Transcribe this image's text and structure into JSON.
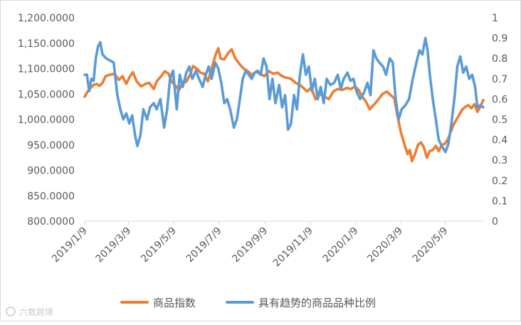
{
  "watermark": "六数跨境",
  "chart_data": {
    "type": "line",
    "title": "",
    "y_left": {
      "min": 800,
      "max": 1200,
      "ticks": [
        "800.0000",
        "850.0000",
        "900.0000",
        "950.0000",
        "1,000.0000",
        "1,050.0000",
        "1,100.0000",
        "1,150.0000",
        "1,200.0000"
      ]
    },
    "y_right": {
      "min": 0,
      "max": 1,
      "ticks": [
        "0",
        "0.1",
        "0.2",
        "0.3",
        "0.4",
        "0.5",
        "0.6",
        "0.7",
        "0.8",
        "0.9",
        "1"
      ]
    },
    "x_range": [
      "2019-01-09",
      "2020-06-29"
    ],
    "x_ticks": [
      "2019/1/9",
      "2019/3/9",
      "2019/5/9",
      "2019/7/9",
      "2019/9/9",
      "2019/11/9",
      "2020/1/9",
      "2020/3/9",
      "2020/5/9"
    ],
    "grid": false,
    "legend_position": "bottom",
    "series": [
      {
        "name": "商品指数",
        "axis": "left",
        "color": "#ED7D31",
        "points": [
          [
            "2019-01-09",
            1045
          ],
          [
            "2019-01-13",
            1055
          ],
          [
            "2019-01-17",
            1062
          ],
          [
            "2019-01-21",
            1068
          ],
          [
            "2019-01-25",
            1070
          ],
          [
            "2019-01-29",
            1066
          ],
          [
            "2019-02-02",
            1072
          ],
          [
            "2019-02-06",
            1085
          ],
          [
            "2019-02-12",
            1088
          ],
          [
            "2019-02-18",
            1090
          ],
          [
            "2019-02-24",
            1078
          ],
          [
            "2019-03-01",
            1085
          ],
          [
            "2019-03-06",
            1070
          ],
          [
            "2019-03-11",
            1085
          ],
          [
            "2019-03-15",
            1093
          ],
          [
            "2019-03-20",
            1075
          ],
          [
            "2019-03-26",
            1065
          ],
          [
            "2019-04-01",
            1070
          ],
          [
            "2019-04-06",
            1072
          ],
          [
            "2019-04-12",
            1060
          ],
          [
            "2019-04-16",
            1075
          ],
          [
            "2019-04-22",
            1085
          ],
          [
            "2019-04-27",
            1095
          ],
          [
            "2019-05-02",
            1090
          ],
          [
            "2019-05-06",
            1075
          ],
          [
            "2019-05-12",
            1065
          ],
          [
            "2019-05-16",
            1058
          ],
          [
            "2019-05-21",
            1070
          ],
          [
            "2019-05-26",
            1075
          ],
          [
            "2019-05-31",
            1088
          ],
          [
            "2019-06-04",
            1105
          ],
          [
            "2019-06-09",
            1100
          ],
          [
            "2019-06-14",
            1092
          ],
          [
            "2019-06-19",
            1090
          ],
          [
            "2019-06-24",
            1075
          ],
          [
            "2019-06-28",
            1095
          ],
          [
            "2019-07-01",
            1110
          ],
          [
            "2019-07-05",
            1130
          ],
          [
            "2019-07-08",
            1140
          ],
          [
            "2019-07-11",
            1120
          ],
          [
            "2019-07-16",
            1118
          ],
          [
            "2019-07-21",
            1130
          ],
          [
            "2019-07-26",
            1138
          ],
          [
            "2019-07-31",
            1120
          ],
          [
            "2019-08-05",
            1110
          ],
          [
            "2019-08-11",
            1100
          ],
          [
            "2019-08-16",
            1096
          ],
          [
            "2019-08-22",
            1088
          ],
          [
            "2019-08-28",
            1094
          ],
          [
            "2019-09-02",
            1090
          ],
          [
            "2019-09-08",
            1085
          ],
          [
            "2019-09-14",
            1095
          ],
          [
            "2019-09-20",
            1090
          ],
          [
            "2019-09-26",
            1092
          ],
          [
            "2019-10-02",
            1085
          ],
          [
            "2019-10-08",
            1082
          ],
          [
            "2019-10-14",
            1080
          ],
          [
            "2019-10-20",
            1072
          ],
          [
            "2019-10-26",
            1068
          ],
          [
            "2019-11-01",
            1060
          ],
          [
            "2019-11-05",
            1055
          ],
          [
            "2019-11-10",
            1063
          ],
          [
            "2019-11-16",
            1040
          ],
          [
            "2019-11-22",
            1050
          ],
          [
            "2019-11-28",
            1045
          ],
          [
            "2019-12-04",
            1040
          ],
          [
            "2019-12-10",
            1055
          ],
          [
            "2019-12-16",
            1060
          ],
          [
            "2019-12-22",
            1058
          ],
          [
            "2019-12-28",
            1062
          ],
          [
            "2020-01-03",
            1060
          ],
          [
            "2020-01-08",
            1065
          ],
          [
            "2020-01-13",
            1058
          ],
          [
            "2020-01-18",
            1045
          ],
          [
            "2020-01-23",
            1035
          ],
          [
            "2020-01-28",
            1020
          ],
          [
            "2020-02-02",
            1028
          ],
          [
            "2020-02-08",
            1038
          ],
          [
            "2020-02-14",
            1050
          ],
          [
            "2020-02-20",
            1055
          ],
          [
            "2020-02-25",
            1048
          ],
          [
            "2020-03-01",
            1042
          ],
          [
            "2020-03-05",
            1010
          ],
          [
            "2020-03-10",
            975
          ],
          [
            "2020-03-15",
            950
          ],
          [
            "2020-03-19",
            932
          ],
          [
            "2020-03-22",
            940
          ],
          [
            "2020-03-25",
            918
          ],
          [
            "2020-03-29",
            932
          ],
          [
            "2020-04-02",
            950
          ],
          [
            "2020-04-06",
            955
          ],
          [
            "2020-04-10",
            945
          ],
          [
            "2020-04-14",
            925
          ],
          [
            "2020-04-18",
            938
          ],
          [
            "2020-04-22",
            940
          ],
          [
            "2020-04-26",
            948
          ],
          [
            "2020-04-30",
            938
          ],
          [
            "2020-05-04",
            950
          ],
          [
            "2020-05-08",
            952
          ],
          [
            "2020-05-12",
            960
          ],
          [
            "2020-05-16",
            975
          ],
          [
            "2020-05-20",
            990
          ],
          [
            "2020-05-24",
            1000
          ],
          [
            "2020-05-28",
            1010
          ],
          [
            "2020-06-01",
            1020
          ],
          [
            "2020-06-05",
            1025
          ],
          [
            "2020-06-09",
            1028
          ],
          [
            "2020-06-13",
            1022
          ],
          [
            "2020-06-17",
            1030
          ],
          [
            "2020-06-21",
            1015
          ],
          [
            "2020-06-25",
            1025
          ],
          [
            "2020-06-29",
            1038
          ]
        ]
      },
      {
        "name": "具有趋势的商品品种比例",
        "axis": "right",
        "color": "#5B9BD5",
        "points": [
          [
            "2019-01-09",
            0.72
          ],
          [
            "2019-01-12",
            0.72
          ],
          [
            "2019-01-15",
            0.64
          ],
          [
            "2019-01-18",
            0.7
          ],
          [
            "2019-01-21",
            0.69
          ],
          [
            "2019-01-24",
            0.8
          ],
          [
            "2019-01-27",
            0.86
          ],
          [
            "2019-01-30",
            0.88
          ],
          [
            "2019-02-02",
            0.82
          ],
          [
            "2019-02-07",
            0.8
          ],
          [
            "2019-02-12",
            0.79
          ],
          [
            "2019-02-17",
            0.78
          ],
          [
            "2019-02-22",
            0.62
          ],
          [
            "2019-02-26",
            0.55
          ],
          [
            "2019-03-02",
            0.5
          ],
          [
            "2019-03-06",
            0.53
          ],
          [
            "2019-03-10",
            0.48
          ],
          [
            "2019-03-14",
            0.52
          ],
          [
            "2019-03-18",
            0.42
          ],
          [
            "2019-03-21",
            0.37
          ],
          [
            "2019-03-25",
            0.42
          ],
          [
            "2019-03-29",
            0.55
          ],
          [
            "2019-04-03",
            0.5
          ],
          [
            "2019-04-07",
            0.56
          ],
          [
            "2019-04-12",
            0.58
          ],
          [
            "2019-04-16",
            0.55
          ],
          [
            "2019-04-21",
            0.6
          ],
          [
            "2019-04-26",
            0.46
          ],
          [
            "2019-04-30",
            0.55
          ],
          [
            "2019-05-04",
            0.7
          ],
          [
            "2019-05-08",
            0.74
          ],
          [
            "2019-05-13",
            0.55
          ],
          [
            "2019-05-17",
            0.72
          ],
          [
            "2019-05-21",
            0.66
          ],
          [
            "2019-05-26",
            0.73
          ],
          [
            "2019-05-30",
            0.76
          ],
          [
            "2019-06-03",
            0.7
          ],
          [
            "2019-06-08",
            0.74
          ],
          [
            "2019-06-12",
            0.7
          ],
          [
            "2019-06-17",
            0.66
          ],
          [
            "2019-06-21",
            0.72
          ],
          [
            "2019-06-25",
            0.76
          ],
          [
            "2019-06-29",
            0.7
          ],
          [
            "2019-07-04",
            0.78
          ],
          [
            "2019-07-08",
            0.75
          ],
          [
            "2019-07-12",
            0.68
          ],
          [
            "2019-07-16",
            0.58
          ],
          [
            "2019-07-20",
            0.6
          ],
          [
            "2019-07-24",
            0.55
          ],
          [
            "2019-07-29",
            0.46
          ],
          [
            "2019-08-02",
            0.5
          ],
          [
            "2019-08-06",
            0.6
          ],
          [
            "2019-08-10",
            0.7
          ],
          [
            "2019-08-14",
            0.74
          ],
          [
            "2019-08-18",
            0.72
          ],
          [
            "2019-08-22",
            0.7
          ],
          [
            "2019-08-26",
            0.73
          ],
          [
            "2019-08-30",
            0.74
          ],
          [
            "2019-09-03",
            0.72
          ],
          [
            "2019-09-07",
            0.8
          ],
          [
            "2019-09-11",
            0.76
          ],
          [
            "2019-09-15",
            0.6
          ],
          [
            "2019-09-19",
            0.7
          ],
          [
            "2019-09-23",
            0.58
          ],
          [
            "2019-09-28",
            0.67
          ],
          [
            "2019-10-02",
            0.56
          ],
          [
            "2019-10-06",
            0.62
          ],
          [
            "2019-10-10",
            0.45
          ],
          [
            "2019-10-14",
            0.48
          ],
          [
            "2019-10-18",
            0.62
          ],
          [
            "2019-10-22",
            0.55
          ],
          [
            "2019-10-26",
            0.72
          ],
          [
            "2019-10-30",
            0.82
          ],
          [
            "2019-11-03",
            0.72
          ],
          [
            "2019-11-07",
            0.76
          ],
          [
            "2019-11-11",
            0.64
          ],
          [
            "2019-11-15",
            0.7
          ],
          [
            "2019-11-19",
            0.6
          ],
          [
            "2019-11-23",
            0.66
          ],
          [
            "2019-11-27",
            0.58
          ],
          [
            "2019-12-01",
            0.7
          ],
          [
            "2019-12-06",
            0.67
          ],
          [
            "2019-12-11",
            0.68
          ],
          [
            "2019-12-16",
            0.72
          ],
          [
            "2019-12-20",
            0.65
          ],
          [
            "2019-12-24",
            0.7
          ],
          [
            "2019-12-29",
            0.73
          ],
          [
            "2020-01-02",
            0.69
          ],
          [
            "2020-01-06",
            0.7
          ],
          [
            "2020-01-10",
            0.64
          ],
          [
            "2020-01-15",
            0.6
          ],
          [
            "2020-01-20",
            0.63
          ],
          [
            "2020-01-25",
            0.68
          ],
          [
            "2020-01-29",
            0.62
          ],
          [
            "2020-02-02",
            0.84
          ],
          [
            "2020-02-06",
            0.8
          ],
          [
            "2020-02-10",
            0.78
          ],
          [
            "2020-02-15",
            0.76
          ],
          [
            "2020-02-19",
            0.72
          ],
          [
            "2020-02-24",
            0.8
          ],
          [
            "2020-02-28",
            0.78
          ],
          [
            "2020-03-03",
            0.6
          ],
          [
            "2020-03-07",
            0.5
          ],
          [
            "2020-03-11",
            0.55
          ],
          [
            "2020-03-16",
            0.57
          ],
          [
            "2020-03-21",
            0.6
          ],
          [
            "2020-03-26",
            0.7
          ],
          [
            "2020-03-31",
            0.78
          ],
          [
            "2020-04-04",
            0.84
          ],
          [
            "2020-04-08",
            0.82
          ],
          [
            "2020-04-12",
            0.9
          ],
          [
            "2020-04-15",
            0.84
          ],
          [
            "2020-04-18",
            0.72
          ],
          [
            "2020-04-22",
            0.6
          ],
          [
            "2020-04-26",
            0.5
          ],
          [
            "2020-04-30",
            0.4
          ],
          [
            "2020-05-04",
            0.37
          ],
          [
            "2020-05-09",
            0.34
          ],
          [
            "2020-05-13",
            0.38
          ],
          [
            "2020-05-17",
            0.48
          ],
          [
            "2020-05-21",
            0.6
          ],
          [
            "2020-05-25",
            0.76
          ],
          [
            "2020-05-29",
            0.81
          ],
          [
            "2020-06-02",
            0.73
          ],
          [
            "2020-06-06",
            0.76
          ],
          [
            "2020-06-10",
            0.7
          ],
          [
            "2020-06-14",
            0.72
          ],
          [
            "2020-06-18",
            0.66
          ],
          [
            "2020-06-21",
            0.56
          ],
          [
            "2020-06-25",
            0.57
          ],
          [
            "2020-06-29",
            0.56
          ]
        ]
      }
    ]
  }
}
